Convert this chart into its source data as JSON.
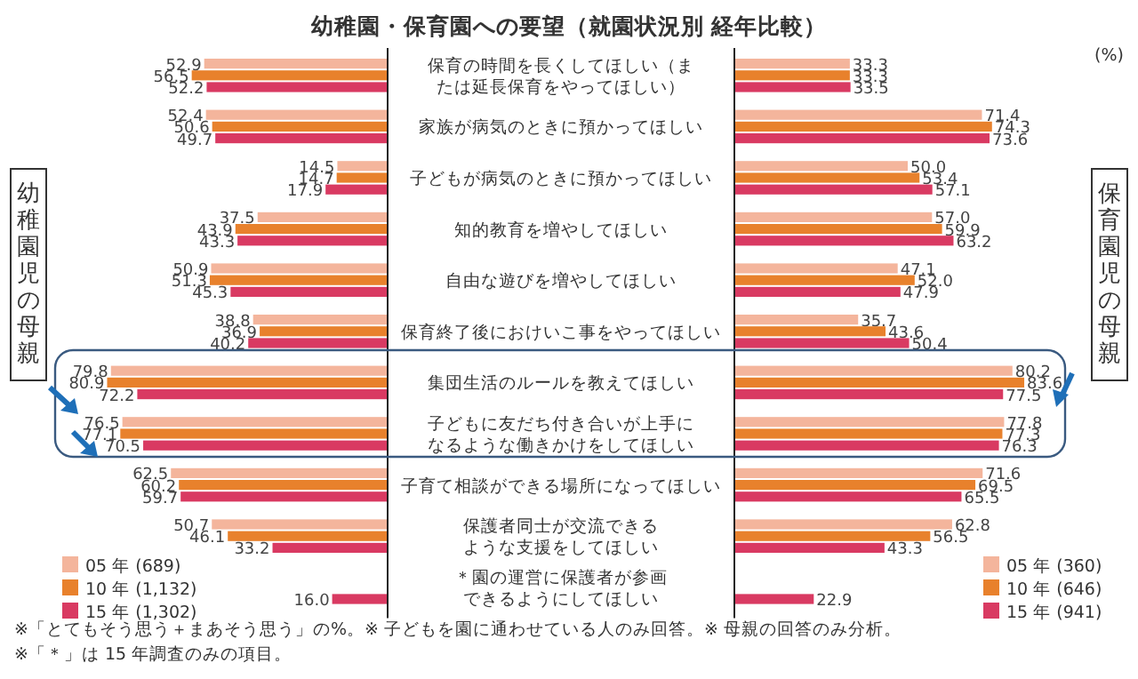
{
  "chart_data": [
    {
      "type": "bar",
      "orientation": "horizontal",
      "title": "幼稚園・保育園への要望（就園状況別 経年比較）",
      "ylabel": "幼稚園児の母親",
      "categories": [
        "保育の時間を長くしてほしい（または延長保育をやってほしい）",
        "家族が病気のときに預かってほしい",
        "子どもが病気のときに預かってほしい",
        "知的教育を増やしてほしい",
        "自由な遊びを増やしてほしい",
        "保育終了後におけいこ事をやってほしい",
        "集団生活のルールを教えてほしい",
        "子どもに友だち付き合いが上手になるような働きかけをしてほしい",
        "子育て相談ができる場所になってほしい",
        "保護者同士が交流できるような支援をしてほしい",
        "＊園の運営に保護者が参画できるようにしてほしい"
      ],
      "tick_labels": "y",
      "legend": "bottom left",
      "series": [
        {
          "name": "05 年 (689)",
          "color": "#f4b59c",
          "values": [
            52.9,
            52.4,
            14.5,
            37.5,
            50.9,
            38.8,
            79.8,
            76.5,
            62.5,
            50.7,
            null
          ],
          "value_labels": [
            "52.9",
            "52.4",
            "14.5",
            "37.5",
            "50.9",
            "38.8",
            "79.8",
            "76.5",
            "62.5",
            "50.7",
            null
          ]
        },
        {
          "name": "10 年 (1,132)",
          "color": "#e8812c",
          "values": [
            56.5,
            50.6,
            14.7,
            43.9,
            51.3,
            36.9,
            80.9,
            77.1,
            60.2,
            46.1,
            null
          ],
          "value_labels": [
            "56.5",
            "50.6",
            "14.7",
            "43.9",
            "51.3",
            "36.9",
            "80.9",
            "77.1",
            "60.2",
            "46.1",
            null
          ]
        },
        {
          "name": "15 年 (1,302)",
          "color": "#d93a62",
          "values": [
            52.2,
            49.7,
            17.9,
            43.3,
            45.3,
            40.2,
            72.2,
            70.5,
            59.7,
            33.2,
            16.0
          ],
          "value_labels": [
            "52.2",
            "49.7",
            "17.9",
            "43.3",
            "45.3",
            "40.2",
            "72.2",
            "70.5",
            "59.7",
            "33.2",
            "16.0"
          ]
        }
      ],
      "annotations": [
        "※「とてもそう思う＋まあそう思う」の%。※ 子どもを園に通わせている人のみ回答。※ 母親の回答のみ分析。",
        "※「＊」は 15 年調査のみの項目。"
      ]
    },
    {
      "type": "bar",
      "orientation": "horizontal",
      "ylabel": "保育園児の母親",
      "categories": [
        "保育の時間を長くしてほしい（または延長保育をやってほしい）",
        "家族が病気のときに預かってほしい",
        "子どもが病気のときに預かってほしい",
        "知的教育を増やしてほしい",
        "自由な遊びを増やしてほしい",
        "保育終了後におけいこ事をやってほしい",
        "集団生活のルールを教えてほしい",
        "子どもに友だち付き合いが上手になるような働きかけをしてほしい",
        "子育て相談ができる場所になってほしい",
        "保護者同士が交流できるような支援をしてほしい",
        "＊園の運営に保護者が参画できるようにしてほしい"
      ],
      "tick_labels": false,
      "legend": "bottom right",
      "series": [
        {
          "name": "05 年 (360)",
          "color": "#f4b59c",
          "values": [
            33.3,
            71.4,
            50.0,
            57.0,
            47.1,
            35.7,
            80.2,
            77.8,
            71.6,
            62.8,
            null
          ],
          "value_labels": [
            "33.3",
            "71.4",
            "50.0",
            "57.0",
            "47.1",
            "35.7",
            "80.2",
            "77.8",
            "71.6",
            "62.8",
            null
          ]
        },
        {
          "name": "10 年 (646)",
          "color": "#e8812c",
          "values": [
            33.3,
            74.3,
            53.4,
            59.9,
            52.0,
            43.6,
            83.6,
            77.3,
            69.5,
            56.5,
            null
          ],
          "value_labels": [
            "33.3",
            "74.3",
            "53.4",
            "59.9",
            "52.0",
            "43.6",
            "83.6",
            "77.3",
            "69.5",
            "56.5",
            null
          ]
        },
        {
          "name": "15 年 (941)",
          "color": "#d93a62",
          "values": [
            33.5,
            73.6,
            57.1,
            63.2,
            47.9,
            50.4,
            77.5,
            76.3,
            65.5,
            43.3,
            22.9
          ],
          "value_labels": [
            "33.5",
            "73.6",
            "57.1",
            "63.2",
            "47.9",
            "50.4",
            "77.5",
            "76.3",
            "65.5",
            "43.3",
            "22.9"
          ]
        }
      ],
      "annotations": [
        "(%)"
      ]
    }
  ]
}
